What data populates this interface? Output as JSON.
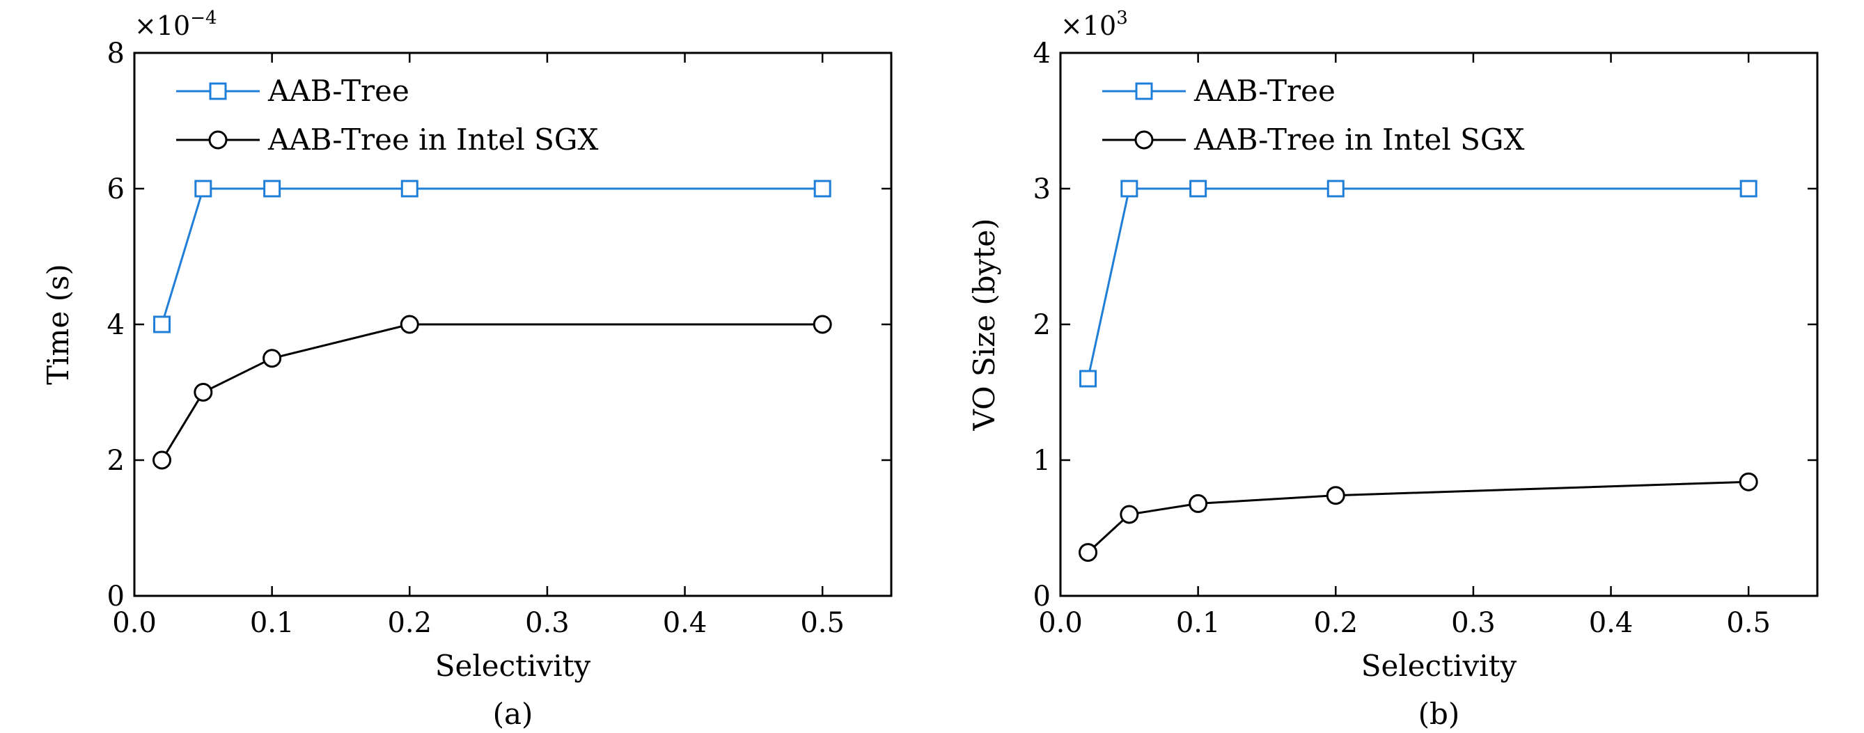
{
  "chart_data": [
    {
      "type": "line",
      "caption": "(a)",
      "xlabel": "Selectivity",
      "ylabel": "Time (s)",
      "y_multiplier": "×10",
      "y_multiplier_exp": "−4",
      "xlim": [
        0,
        0.55
      ],
      "ylim": [
        0,
        8
      ],
      "xticks": [
        0.0,
        0.1,
        0.2,
        0.3,
        0.4,
        0.5
      ],
      "xtick_labels": [
        "0.0",
        "0.1",
        "0.2",
        "0.3",
        "0.4",
        "0.5"
      ],
      "yticks": [
        0,
        2,
        4,
        6,
        8
      ],
      "ytick_labels": [
        "0",
        "2",
        "4",
        "6",
        "8"
      ],
      "grid": false,
      "legend_position": "top-left",
      "series": [
        {
          "name": "AAB-Tree",
          "marker": "square",
          "color": "#1f7fd8",
          "x": [
            0.02,
            0.05,
            0.1,
            0.2,
            0.5
          ],
          "y": [
            4,
            6,
            6,
            6,
            6
          ]
        },
        {
          "name": "AAB-Tree in Intel SGX",
          "marker": "circle",
          "color": "#000000",
          "x": [
            0.02,
            0.05,
            0.1,
            0.2,
            0.5
          ],
          "y": [
            2,
            3,
            3.5,
            4,
            4
          ]
        }
      ]
    },
    {
      "type": "line",
      "caption": "(b)",
      "xlabel": "Selectivity",
      "ylabel": "VO Size (byte)",
      "y_multiplier": "×10",
      "y_multiplier_exp": "3",
      "xlim": [
        0,
        0.55
      ],
      "ylim": [
        0,
        4
      ],
      "xticks": [
        0.0,
        0.1,
        0.2,
        0.3,
        0.4,
        0.5
      ],
      "xtick_labels": [
        "0.0",
        "0.1",
        "0.2",
        "0.3",
        "0.4",
        "0.5"
      ],
      "yticks": [
        0,
        1,
        2,
        3,
        4
      ],
      "ytick_labels": [
        "0",
        "1",
        "2",
        "3",
        "4"
      ],
      "grid": false,
      "legend_position": "top-left",
      "series": [
        {
          "name": "AAB-Tree",
          "marker": "square",
          "color": "#1f7fd8",
          "x": [
            0.02,
            0.05,
            0.1,
            0.2,
            0.5
          ],
          "y": [
            1.6,
            3,
            3,
            3,
            3
          ]
        },
        {
          "name": "AAB-Tree in Intel SGX",
          "marker": "circle",
          "color": "#000000",
          "x": [
            0.02,
            0.05,
            0.1,
            0.2,
            0.5
          ],
          "y": [
            0.32,
            0.6,
            0.68,
            0.74,
            0.84
          ]
        }
      ]
    }
  ]
}
